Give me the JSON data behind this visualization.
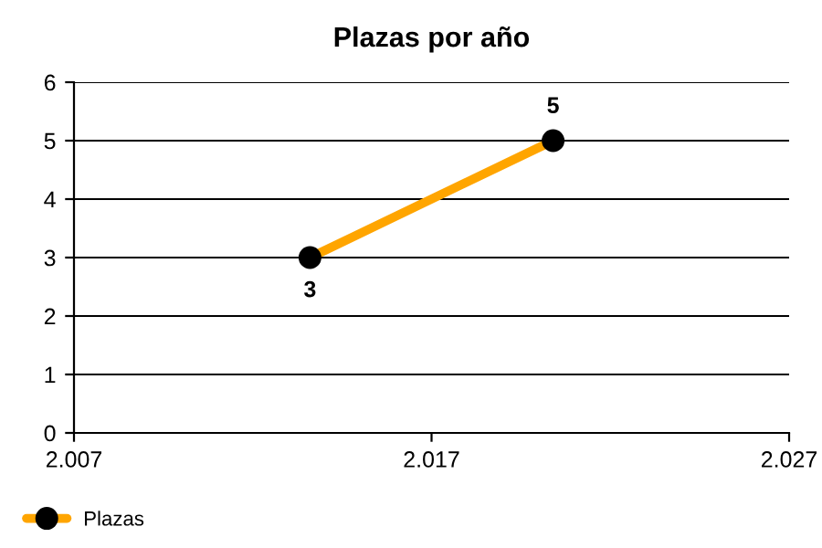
{
  "chart_data": {
    "type": "line",
    "title": "Plazas por año",
    "x": [
      2013.6,
      2020.4
    ],
    "series": [
      {
        "name": "Plazas",
        "color": "#ffa500",
        "values": [
          3,
          5
        ]
      }
    ],
    "xlim": [
      2007,
      2027
    ],
    "xticks": [
      {
        "value": 2007,
        "label": "2.007"
      },
      {
        "value": 2017,
        "label": "2.017"
      },
      {
        "value": 2027,
        "label": "2.027"
      }
    ],
    "ylim": [
      0,
      6
    ],
    "yticks": [
      0,
      1,
      2,
      3,
      4,
      5,
      6
    ],
    "grid": "y",
    "legend": "bottom left",
    "marker": "circle",
    "data_labels": true
  }
}
